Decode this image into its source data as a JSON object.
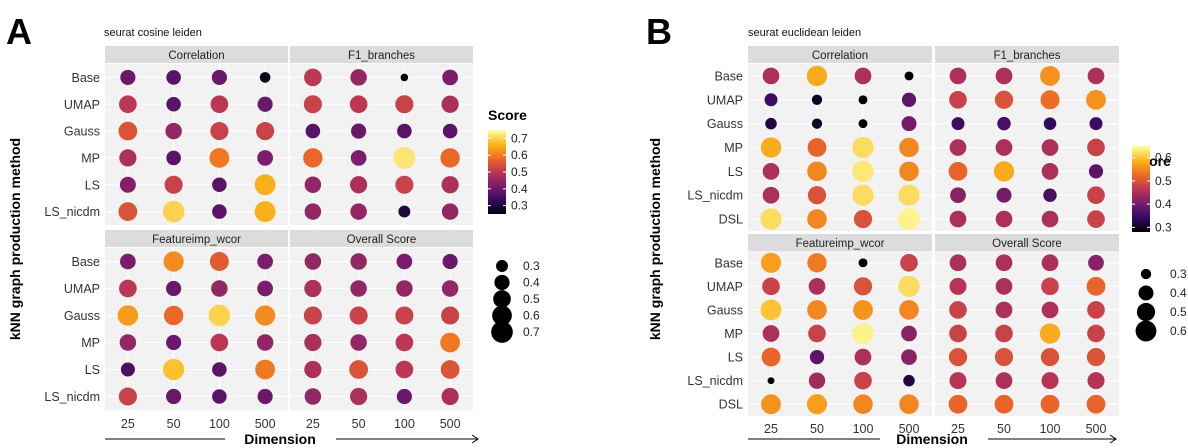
{
  "figure": {
    "y_axis_title": "kNN graph production method",
    "x_axis_title": "Dimension"
  },
  "colors": {
    "scale": [
      "#000004",
      "#330a5f",
      "#781c6d",
      "#bc3754",
      "#ed6925",
      "#fbb61a",
      "#fcffa4"
    ]
  },
  "chart_data": [
    {
      "label": "A",
      "type": "scatter",
      "title": "seurat cosine leiden",
      "x_categories": [
        "25",
        "50",
        "100",
        "500"
      ],
      "xlabel": "Dimension",
      "ylabel": "kNN graph production method",
      "rows_top": [
        "Base",
        "UMAP",
        "Gauss",
        "MP",
        "LS",
        "LS_nicdm"
      ],
      "rows_bottom": [
        "Base",
        "UMAP",
        "Gauss",
        "MP",
        "LS",
        "LS_nicdm"
      ],
      "panels": [
        {
          "name": "Correlation",
          "values": [
            [
              0.4,
              0.38,
              0.4,
              0.27
            ],
            [
              0.5,
              0.38,
              0.5,
              0.4
            ],
            [
              0.55,
              0.45,
              0.52,
              0.52
            ],
            [
              0.48,
              0.38,
              0.6,
              0.42
            ],
            [
              0.43,
              0.52,
              0.38,
              0.66
            ],
            [
              0.55,
              0.7,
              0.38,
              0.66
            ]
          ]
        },
        {
          "name": "F1_branches",
          "values": [
            [
              0.5,
              0.45,
              0.22,
              0.42
            ],
            [
              0.52,
              0.5,
              0.52,
              0.48
            ],
            [
              0.38,
              0.4,
              0.38,
              0.38
            ],
            [
              0.58,
              0.42,
              0.72,
              0.58
            ],
            [
              0.45,
              0.48,
              0.52,
              0.48
            ],
            [
              0.45,
              0.45,
              0.3,
              0.45
            ]
          ]
        },
        {
          "name": "Featureimp_wcor",
          "values": [
            [
              0.42,
              0.62,
              0.56,
              0.42
            ],
            [
              0.5,
              0.4,
              0.45,
              0.42
            ],
            [
              0.64,
              0.58,
              0.7,
              0.62
            ],
            [
              0.45,
              0.4,
              0.5,
              0.45
            ],
            [
              0.36,
              0.68,
              0.38,
              0.6
            ],
            [
              0.52,
              0.4,
              0.38,
              0.4
            ]
          ]
        },
        {
          "name": "Overall Score",
          "values": [
            [
              0.45,
              0.45,
              0.42,
              0.4
            ],
            [
              0.48,
              0.45,
              0.45,
              0.45
            ],
            [
              0.52,
              0.52,
              0.52,
              0.52
            ],
            [
              0.48,
              0.45,
              0.5,
              0.6
            ],
            [
              0.48,
              0.55,
              0.5,
              0.55
            ],
            [
              0.45,
              0.48,
              0.4,
              0.48
            ]
          ]
        }
      ],
      "color_legend": {
        "title": "Score",
        "min": 0.25,
        "max": 0.75,
        "ticks": [
          "0.3",
          "0.4",
          "0.5",
          "0.6",
          "0.7"
        ]
      },
      "size_legend": {
        "values": [
          "0.3",
          "0.4",
          "0.5",
          "0.6",
          "0.7"
        ]
      }
    },
    {
      "label": "B",
      "type": "scatter",
      "title": "seurat euclidean leiden",
      "x_categories": [
        "25",
        "50",
        "100",
        "500"
      ],
      "xlabel": "Dimension",
      "ylabel": "kNN graph production method",
      "rows_top": [
        "Base",
        "UMAP",
        "Gauss",
        "MP",
        "LS",
        "LS_nicdm",
        "DSL"
      ],
      "rows_bottom": [
        "Base",
        "UMAP",
        "Gauss",
        "MP",
        "LS",
        "LS_nicdm",
        "DSL"
      ],
      "panels": [
        {
          "name": "Correlation",
          "values": [
            [
              0.45,
              0.58,
              0.45,
              0.28
            ],
            [
              0.35,
              0.3,
              0.28,
              0.38
            ],
            [
              0.32,
              0.3,
              0.28,
              0.4
            ],
            [
              0.58,
              0.52,
              0.62,
              0.55
            ],
            [
              0.45,
              0.55,
              0.63,
              0.55
            ],
            [
              0.45,
              0.5,
              0.62,
              0.62
            ],
            [
              0.62,
              0.55,
              0.5,
              0.64
            ]
          ]
        },
        {
          "name": "F1_branches",
          "values": [
            [
              0.45,
              0.45,
              0.56,
              0.45
            ],
            [
              0.48,
              0.5,
              0.53,
              0.56
            ],
            [
              0.35,
              0.36,
              0.34,
              0.35
            ],
            [
              0.45,
              0.45,
              0.45,
              0.48
            ],
            [
              0.52,
              0.58,
              0.45,
              0.38
            ],
            [
              0.42,
              0.4,
              0.36,
              0.48
            ],
            [
              0.45,
              0.45,
              0.45,
              0.48
            ]
          ]
        },
        {
          "name": "Featureimp_wcor",
          "values": [
            [
              0.57,
              0.54,
              0.28,
              0.48
            ],
            [
              0.48,
              0.45,
              0.5,
              0.62
            ],
            [
              0.6,
              0.55,
              0.56,
              0.55
            ],
            [
              0.45,
              0.48,
              0.64,
              0.42
            ],
            [
              0.52,
              0.38,
              0.45,
              0.42
            ],
            [
              0.26,
              0.44,
              0.48,
              0.32
            ],
            [
              0.56,
              0.57,
              0.55,
              0.55
            ]
          ]
        },
        {
          "name": "Overall Score",
          "values": [
            [
              0.45,
              0.45,
              0.45,
              0.42
            ],
            [
              0.46,
              0.45,
              0.48,
              0.52
            ],
            [
              0.48,
              0.45,
              0.45,
              0.48
            ],
            [
              0.48,
              0.48,
              0.58,
              0.48
            ],
            [
              0.5,
              0.5,
              0.5,
              0.5
            ],
            [
              0.46,
              0.45,
              0.46,
              0.46
            ],
            [
              0.52,
              0.52,
              0.52,
              0.52
            ]
          ]
        }
      ],
      "color_legend": {
        "title": "Score",
        "min": 0.28,
        "max": 0.65,
        "ticks": [
          "0.3",
          "0.4",
          "0.5",
          "0.6"
        ]
      },
      "size_legend": {
        "values": [
          "0.3",
          "0.4",
          "0.5",
          "0.6"
        ]
      }
    }
  ]
}
